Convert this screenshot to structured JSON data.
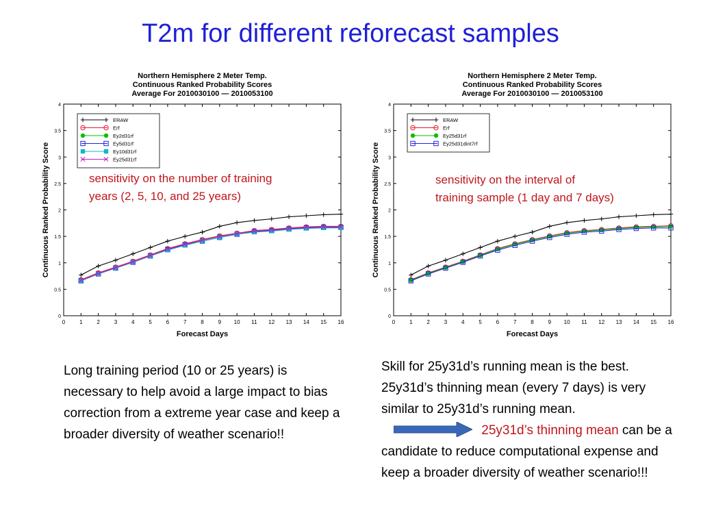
{
  "slide": {
    "title": "T2m for different reforecast samples",
    "left_annotation_line1": "sensitivity on the number of training",
    "left_annotation_line2": "years (2, 5, 10, and 25 years)",
    "right_annotation_line1": "sensitivity on the interval of",
    "right_annotation_line2": "training sample  (1 day and 7 days)",
    "left_text": "Long training period  (10 or 25 years) is necessary to help avoid a large impact to bias correction from a extreme year case and keep a broader diversity of weather scenario!!",
    "right_text_part1": "Skill for 25y31d’s running mean is the best. 25y31d’s thinning mean (every 7 days) is very similar to 25y31d’s running mean.",
    "right_text_highlight": "25y31d’s thinning mean",
    "right_text_part2": "can be a candidate  to reduce computational expense and keep a broader diversity of weather scenario!!!",
    "arrow_color": "#3a68b8"
  },
  "chart_data": [
    {
      "type": "line",
      "title": "Northern Hemisphere 2 Meter Temp.",
      "subtitle1": "Continuous Ranked Probability Scores",
      "subtitle2": "Average For 2010030100 — 2010053100",
      "xlabel": "Forecast Days",
      "ylabel": "Continuous Ranked Probability Score",
      "xlim": [
        0,
        16
      ],
      "ylim": [
        0,
        4
      ],
      "x_ticks": [
        "0",
        "1",
        "2",
        "3",
        "4",
        "5",
        "6",
        "7",
        "8",
        "9",
        "10",
        "11",
        "12",
        "13",
        "14",
        "15",
        "16"
      ],
      "y_ticks": [
        "0",
        "0.5",
        "1",
        "1.5",
        "2",
        "2.5",
        "3",
        "3.5",
        "4"
      ],
      "grid": false,
      "legend_position": "top-left",
      "x": [
        1,
        2,
        3,
        4,
        5,
        6,
        7,
        8,
        9,
        10,
        11,
        12,
        13,
        14,
        15,
        16
      ],
      "series": [
        {
          "name": "ERAW",
          "color": "#000000",
          "marker": "plus",
          "values": [
            0.77,
            0.94,
            1.05,
            1.17,
            1.29,
            1.41,
            1.5,
            1.58,
            1.69,
            1.76,
            1.8,
            1.83,
            1.87,
            1.89,
            1.91,
            1.92
          ]
        },
        {
          "name": "Erf",
          "color": "#e8192c",
          "marker": "circle",
          "values": [
            0.68,
            0.81,
            0.92,
            1.03,
            1.15,
            1.27,
            1.36,
            1.44,
            1.51,
            1.56,
            1.61,
            1.63,
            1.66,
            1.68,
            1.69,
            1.69
          ]
        },
        {
          "name": "Ey2d31rf",
          "color": "#00c000",
          "marker": "dot",
          "values": [
            0.67,
            0.8,
            0.91,
            1.02,
            1.14,
            1.26,
            1.35,
            1.43,
            1.5,
            1.55,
            1.6,
            1.62,
            1.65,
            1.67,
            1.68,
            1.68
          ]
        },
        {
          "name": "Ey5d31rf",
          "color": "#2222dd",
          "marker": "square",
          "values": [
            0.66,
            0.79,
            0.9,
            1.01,
            1.13,
            1.25,
            1.34,
            1.41,
            1.48,
            1.54,
            1.59,
            1.61,
            1.64,
            1.66,
            1.67,
            1.67
          ]
        },
        {
          "name": "Ey10d31rf",
          "color": "#11b5c8",
          "marker": "filled-square",
          "values": [
            0.66,
            0.79,
            0.9,
            1.01,
            1.13,
            1.24,
            1.33,
            1.41,
            1.48,
            1.54,
            1.58,
            1.6,
            1.63,
            1.65,
            1.66,
            1.66
          ]
        },
        {
          "name": "Ey25d31rf",
          "color": "#c018c0",
          "marker": "x",
          "values": [
            0.67,
            0.8,
            0.91,
            1.02,
            1.14,
            1.26,
            1.35,
            1.43,
            1.5,
            1.55,
            1.6,
            1.62,
            1.65,
            1.67,
            1.68,
            1.68
          ]
        }
      ]
    },
    {
      "type": "line",
      "title": "Northern Hemisphere 2 Meter Temp.",
      "subtitle1": "Continuous Ranked Probability Scores",
      "subtitle2": "Average For 2010030100 — 2010053100",
      "xlabel": "Forecast Days",
      "ylabel": "Continuous Ranked Probability Score",
      "xlim": [
        0,
        16
      ],
      "ylim": [
        0,
        4
      ],
      "x_ticks": [
        "0",
        "1",
        "2",
        "3",
        "4",
        "5",
        "6",
        "7",
        "8",
        "9",
        "10",
        "11",
        "12",
        "13",
        "14",
        "15",
        "16"
      ],
      "y_ticks": [
        "0",
        "0.5",
        "1",
        "1.5",
        "2",
        "2.5",
        "3",
        "3.5",
        "4"
      ],
      "grid": false,
      "legend_position": "top-left",
      "x": [
        1,
        2,
        3,
        4,
        5,
        6,
        7,
        8,
        9,
        10,
        11,
        12,
        13,
        14,
        15,
        16
      ],
      "series": [
        {
          "name": "ERAW",
          "color": "#000000",
          "marker": "plus",
          "values": [
            0.77,
            0.94,
            1.05,
            1.17,
            1.29,
            1.41,
            1.5,
            1.58,
            1.69,
            1.76,
            1.8,
            1.83,
            1.87,
            1.89,
            1.91,
            1.92
          ]
        },
        {
          "name": "Erf",
          "color": "#e8192c",
          "marker": "circle",
          "values": [
            0.68,
            0.81,
            0.92,
            1.03,
            1.15,
            1.27,
            1.36,
            1.44,
            1.51,
            1.57,
            1.61,
            1.63,
            1.66,
            1.68,
            1.69,
            1.7
          ]
        },
        {
          "name": "Ey25d31rf",
          "color": "#00c000",
          "marker": "dot",
          "values": [
            0.67,
            0.8,
            0.91,
            1.02,
            1.14,
            1.26,
            1.35,
            1.43,
            1.5,
            1.56,
            1.6,
            1.62,
            1.65,
            1.67,
            1.68,
            1.69
          ]
        },
        {
          "name": "Ey25d31dint7rf",
          "color": "#2222dd",
          "marker": "square",
          "values": [
            0.66,
            0.79,
            0.9,
            1.01,
            1.13,
            1.24,
            1.33,
            1.41,
            1.48,
            1.54,
            1.58,
            1.6,
            1.63,
            1.65,
            1.66,
            1.66
          ]
        }
      ]
    }
  ]
}
